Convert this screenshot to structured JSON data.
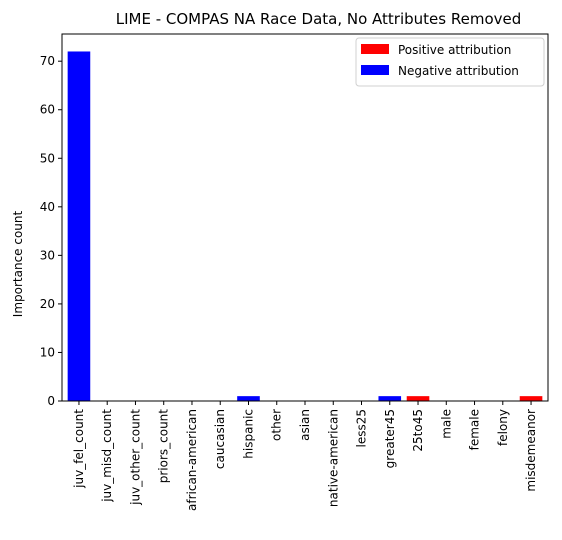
{
  "chart_data": {
    "type": "bar",
    "title": "LIME - COMPAS NA Race Data, No Attributes Removed",
    "ylabel": "Importance count",
    "xlabel": "",
    "ylim": [
      0,
      75.6
    ],
    "yticks": [
      0,
      10,
      20,
      30,
      40,
      50,
      60,
      70
    ],
    "categories": [
      "juv_fel_count",
      "juv_misd_count",
      "juv_other_count",
      "priors_count",
      "african-american",
      "caucasian",
      "hispanic",
      "other",
      "asian",
      "native-american",
      "less25",
      "greater45",
      "25to45",
      "male",
      "female",
      "felony",
      "misdemeanor"
    ],
    "values": [
      72,
      0,
      0,
      0,
      0,
      0,
      1,
      0,
      0,
      0,
      0,
      1,
      1,
      0,
      0,
      0,
      1
    ],
    "attribution": [
      "negative",
      "negative",
      "negative",
      "negative",
      "negative",
      "negative",
      "negative",
      "negative",
      "negative",
      "negative",
      "negative",
      "negative",
      "positive",
      "positive",
      "positive",
      "positive",
      "positive"
    ],
    "legend": {
      "position": "top-right",
      "entries": [
        {
          "label": "Positive attribution",
          "color": "#ff0000",
          "key": "positive"
        },
        {
          "label": "Negative attribution",
          "color": "#0000ff",
          "key": "negative"
        }
      ]
    },
    "grid": false
  }
}
